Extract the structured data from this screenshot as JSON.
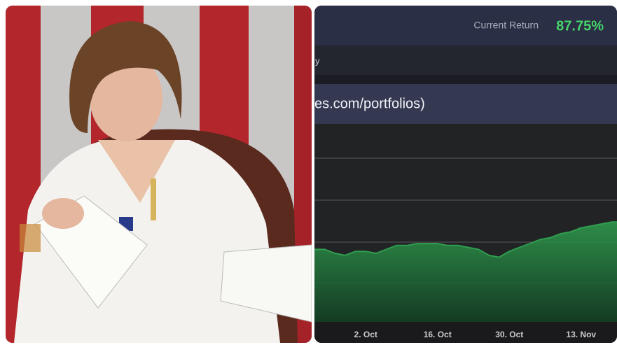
{
  "header": {
    "label": "Current Return",
    "value": "87.75%"
  },
  "tab_fragment": "y",
  "url_fragment": "es.com/portfolios)",
  "chart_data": {
    "type": "area",
    "categories": [
      null,
      null,
      null,
      null,
      null,
      "2. Oct",
      null,
      null,
      null,
      null,
      null,
      null,
      "16. Oct",
      null,
      null,
      null,
      null,
      null,
      null,
      "30. Oct",
      null,
      null,
      null,
      null,
      null,
      null,
      "13. Nov",
      null,
      null,
      null
    ],
    "values": [
      37,
      37,
      35,
      34,
      36,
      36,
      35,
      37,
      39,
      39,
      40,
      40,
      40,
      39,
      39,
      38,
      37,
      34,
      33,
      36,
      38,
      40,
      42,
      43,
      45,
      46,
      48,
      49,
      50,
      51
    ],
    "color": "#2f9e4f",
    "ylim": [
      0,
      100
    ]
  }
}
